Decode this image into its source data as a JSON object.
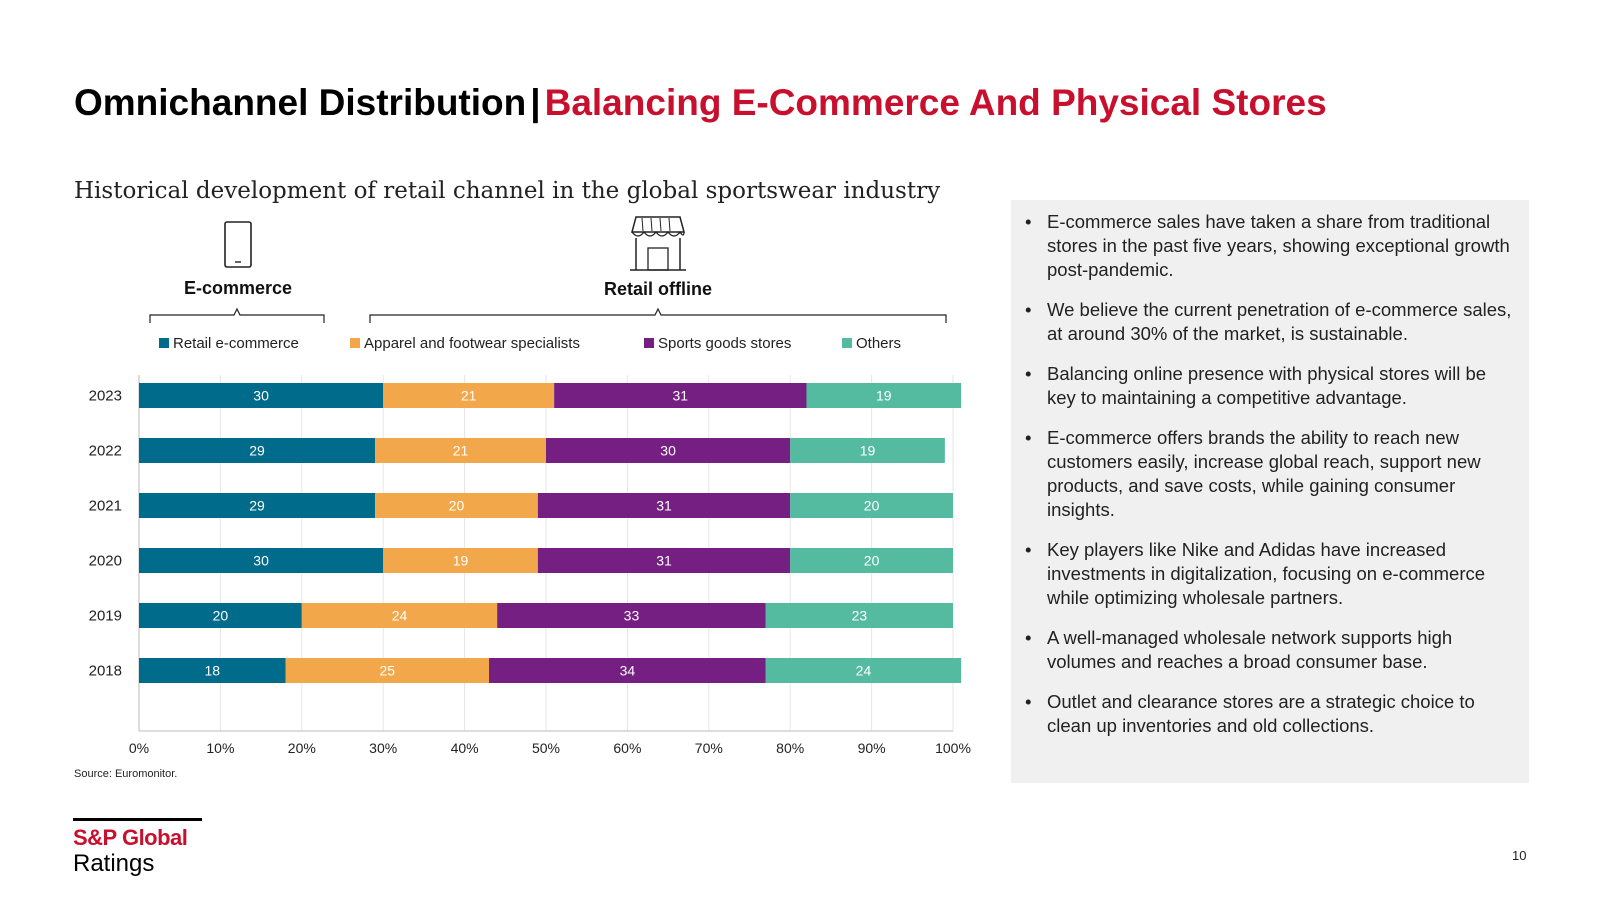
{
  "header": {
    "title_main": "Omnichannel Distribution",
    "title_sep": "|",
    "title_accent": "Balancing E-Commerce And Physical Stores",
    "accent_color": "#c8102e"
  },
  "chart_data": {
    "type": "bar",
    "orientation": "horizontal",
    "stacked": true,
    "title": "Historical development of retail channel in the global sportswear industry",
    "group_labels": [
      "E-commerce",
      "Retail offline"
    ],
    "group_icons": [
      "mobile-phone-icon",
      "storefront-icon"
    ],
    "categories": [
      "2023",
      "2022",
      "2021",
      "2020",
      "2019",
      "2018"
    ],
    "series": [
      {
        "name": "Retail e-commerce",
        "color": "#006b8a",
        "values": [
          30,
          29,
          29,
          30,
          20,
          18
        ]
      },
      {
        "name": "Apparel and footwear specialists",
        "color": "#f2a74a",
        "values": [
          21,
          21,
          20,
          19,
          24,
          25
        ]
      },
      {
        "name": "Sports goods stores",
        "color": "#761f82",
        "values": [
          31,
          30,
          31,
          31,
          33,
          34
        ]
      },
      {
        "name": "Others",
        "color": "#55bba0",
        "values": [
          19,
          19,
          20,
          20,
          23,
          24
        ]
      }
    ],
    "xlim": [
      0,
      100
    ],
    "x_ticks": [
      "0%",
      "10%",
      "20%",
      "30%",
      "40%",
      "50%",
      "60%",
      "70%",
      "80%",
      "90%",
      "100%"
    ],
    "legend_position": "top",
    "grid": true
  },
  "bullets": [
    "E-commerce sales have taken a share from traditional stores in the past five years, showing exceptional growth post-pandemic.",
    "We believe the current penetration of e-commerce sales, at around 30% of the market, is sustainable.",
    "Balancing online presence with physical stores will be key to maintaining a competitive advantage.",
    "E-commerce offers brands the ability to reach new customers easily, increase global reach, support new products, and save costs, while gaining consumer insights.",
    "Key players like Nike and Adidas have increased investments in digitalization, focusing on e-commerce while optimizing wholesale partners.",
    "A well-managed wholesale network supports high volumes and reaches a broad consumer base.",
    "Outlet and clearance stores are a strategic choice to clean up inventories and old collections."
  ],
  "footer": {
    "source": "Source: Euromonitor.",
    "logo_line1": "S&P Global",
    "logo_line2": "Ratings",
    "page_number": "10"
  }
}
